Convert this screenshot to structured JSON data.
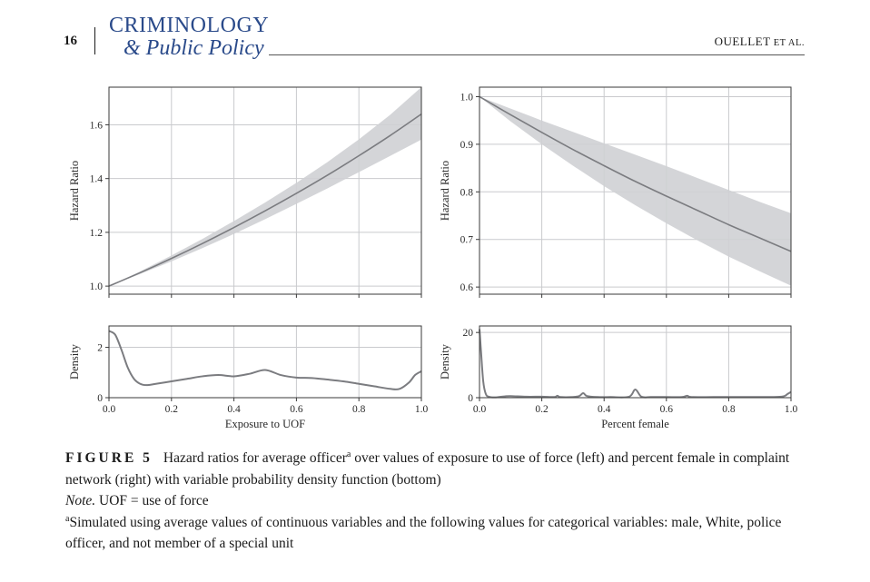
{
  "header": {
    "page_number": "16",
    "journal_line1": "CRIMINOLOGY",
    "journal_line2": "& Public Policy",
    "authors_main": "OUELLET",
    "authors_small": " ET AL."
  },
  "caption": {
    "figure_label": "FIGURE 5",
    "text_part1": "Hazard ratios for average officer",
    "sup_marker": "a",
    "text_part2": " over values of exposure to use of force (left) and percent female in complaint network (right) with variable probability density function (bottom)",
    "note_label": "Note.",
    "note_text": " UOF = use of force",
    "footnote_marker": "a",
    "footnote_text": "Simulated using average values of continuous variables and the following values for categorical variables: male, White, police officer, and not member of a special unit"
  },
  "chart_data": [
    {
      "id": "hazard-uof",
      "type": "line",
      "title": "",
      "xlabel": "",
      "ylabel": "Hazard Ratio",
      "xlim": [
        0.0,
        1.0
      ],
      "ylim": [
        0.97,
        1.74
      ],
      "xticks": [
        0.0,
        0.2,
        0.4,
        0.6,
        0.8,
        1.0
      ],
      "yticks": [
        1.0,
        1.2,
        1.4,
        1.6
      ],
      "ytick_labels": [
        "1.0",
        "1.2",
        "1.4",
        "1.6"
      ],
      "show_x_tick_labels": false,
      "grid": true,
      "x": [
        0.0,
        0.1,
        0.2,
        0.3,
        0.4,
        0.5,
        0.6,
        0.7,
        0.8,
        0.9,
        1.0
      ],
      "series": [
        {
          "name": "Hazard ratio",
          "values": [
            1.0,
            1.05,
            1.103,
            1.159,
            1.218,
            1.28,
            1.345,
            1.413,
            1.485,
            1.56,
            1.64
          ]
        }
      ],
      "band_upper": [
        1.0,
        1.055,
        1.114,
        1.176,
        1.242,
        1.311,
        1.384,
        1.462,
        1.546,
        1.637,
        1.74
      ],
      "band_lower": [
        1.0,
        1.045,
        1.092,
        1.142,
        1.194,
        1.249,
        1.306,
        1.364,
        1.424,
        1.484,
        1.545
      ]
    },
    {
      "id": "hazard-female",
      "type": "line",
      "title": "",
      "xlabel": "",
      "ylabel": "Hazard Ratio",
      "xlim": [
        0.0,
        1.0
      ],
      "ylim": [
        0.585,
        1.02
      ],
      "xticks": [
        0.0,
        0.2,
        0.4,
        0.6,
        0.8,
        1.0
      ],
      "yticks": [
        0.6,
        0.7,
        0.8,
        0.9,
        1.0
      ],
      "ytick_labels": [
        "0.6",
        "0.7",
        "0.8",
        "0.9",
        "1.0"
      ],
      "show_x_tick_labels": false,
      "grid": true,
      "x": [
        0.0,
        0.1,
        0.2,
        0.3,
        0.4,
        0.5,
        0.6,
        0.7,
        0.8,
        0.9,
        1.0
      ],
      "series": [
        {
          "name": "Hazard ratio",
          "values": [
            1.0,
            0.962,
            0.925,
            0.889,
            0.855,
            0.822,
            0.791,
            0.761,
            0.731,
            0.703,
            0.675
          ]
        }
      ],
      "band_upper": [
        1.0,
        0.975,
        0.95,
        0.926,
        0.902,
        0.878,
        0.854,
        0.829,
        0.804,
        0.779,
        0.755
      ],
      "band_lower": [
        1.0,
        0.948,
        0.9,
        0.855,
        0.812,
        0.772,
        0.734,
        0.698,
        0.664,
        0.633,
        0.603
      ]
    },
    {
      "id": "density-uof",
      "type": "line",
      "title": "",
      "xlabel": "Exposure to UOF",
      "ylabel": "Density",
      "xlim": [
        0.0,
        1.0
      ],
      "ylim": [
        0.0,
        2.85
      ],
      "xticks": [
        0.0,
        0.2,
        0.4,
        0.6,
        0.8,
        1.0
      ],
      "xtick_labels": [
        "0.0",
        "0.2",
        "0.4",
        "0.6",
        "0.8",
        "1.0"
      ],
      "yticks": [
        0,
        2
      ],
      "ytick_labels": [
        "0",
        "2"
      ],
      "show_x_tick_labels": true,
      "grid": true,
      "x": [
        0.0,
        0.02,
        0.04,
        0.06,
        0.08,
        0.1,
        0.12,
        0.15,
        0.2,
        0.25,
        0.3,
        0.35,
        0.4,
        0.45,
        0.5,
        0.55,
        0.6,
        0.65,
        0.7,
        0.75,
        0.8,
        0.85,
        0.9,
        0.93,
        0.96,
        0.98,
        1.0
      ],
      "series": [
        {
          "name": "Density",
          "values": [
            2.65,
            2.5,
            1.9,
            1.2,
            0.75,
            0.55,
            0.5,
            0.55,
            0.65,
            0.75,
            0.85,
            0.9,
            0.85,
            0.95,
            1.1,
            0.9,
            0.8,
            0.78,
            0.72,
            0.65,
            0.55,
            0.45,
            0.35,
            0.35,
            0.6,
            0.9,
            1.05
          ]
        }
      ]
    },
    {
      "id": "density-female",
      "type": "line",
      "title": "",
      "xlabel": "Percent female",
      "ylabel": "Density",
      "xlim": [
        0.0,
        1.0
      ],
      "ylim": [
        0.0,
        22.0
      ],
      "xticks": [
        0.0,
        0.2,
        0.4,
        0.6,
        0.8,
        1.0
      ],
      "xtick_labels": [
        "0.0",
        "0.2",
        "0.4",
        "0.6",
        "0.8",
        "1.0"
      ],
      "yticks": [
        0,
        20
      ],
      "ytick_labels": [
        "0",
        "20"
      ],
      "show_x_tick_labels": true,
      "grid": true,
      "x": [
        0.0,
        0.005,
        0.012,
        0.02,
        0.03,
        0.05,
        0.08,
        0.1,
        0.15,
        0.2,
        0.24,
        0.25,
        0.26,
        0.3,
        0.32,
        0.333,
        0.345,
        0.38,
        0.42,
        0.48,
        0.5,
        0.52,
        0.55,
        0.6,
        0.65,
        0.667,
        0.68,
        0.75,
        0.8,
        0.9,
        0.97,
        0.99,
        1.0
      ],
      "series": [
        {
          "name": "Density",
          "values": [
            21.0,
            14.0,
            5.0,
            1.2,
            0.3,
            0.1,
            0.4,
            0.5,
            0.3,
            0.3,
            0.2,
            0.6,
            0.2,
            0.2,
            0.5,
            1.4,
            0.5,
            0.2,
            0.2,
            0.3,
            2.5,
            0.3,
            0.2,
            0.2,
            0.2,
            0.6,
            0.2,
            0.2,
            0.2,
            0.2,
            0.3,
            1.2,
            1.8
          ]
        }
      ]
    }
  ]
}
